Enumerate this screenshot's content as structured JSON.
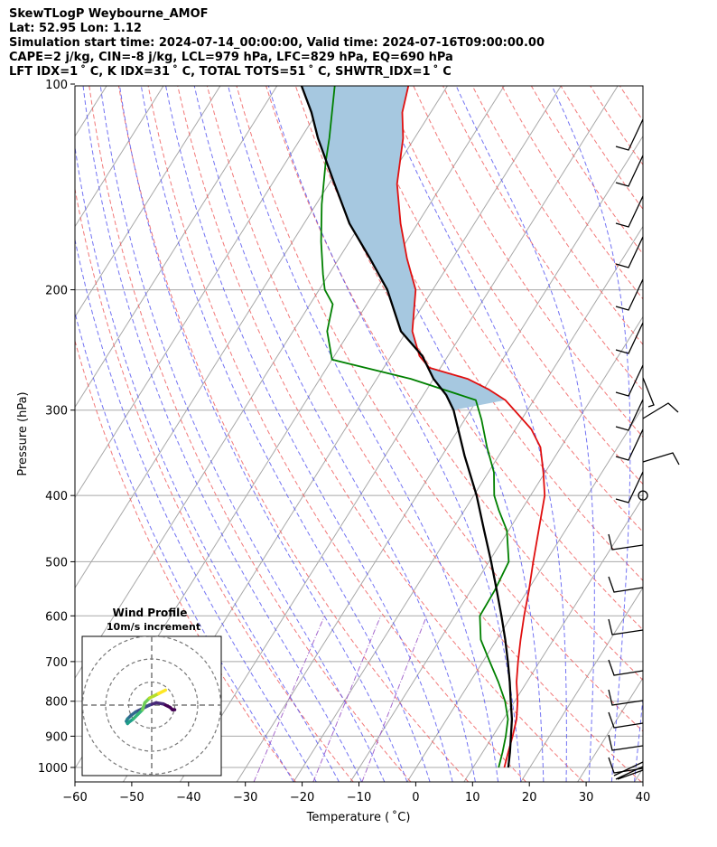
{
  "header": {
    "title": "SkewTLogP Weybourne_AMOF",
    "location": "Lat: 52.95   Lon: 1.12",
    "times": "Simulation start time: 2024-07-14_00:00:00, Valid time: 2024-07-16T09:00:00.00",
    "params1": "CAPE=2 j/kg, CIN=-8 j/kg, LCL=979 hPa, LFC=829 hPa, EQ=690 hPa",
    "params2": "LFT IDX=1 ˚ C, K IDX=31 ˚ C, TOTAL TOTS=51 ˚ C, SHWTR_IDX=1 ˚ C"
  },
  "chart_data": [
    {
      "type": "line",
      "subtype": "skew-t log-p",
      "xlabel": "Temperature ( ˚C)",
      "ylabel": "Pressure (hPa)",
      "xlim": [
        -60,
        40
      ],
      "ylim": [
        1050,
        100
      ],
      "y_scale": "log",
      "grid": true,
      "x_ticks": [
        "−60",
        "−50",
        "−40",
        "−30",
        "−20",
        "−10",
        "0",
        "10",
        "20",
        "30",
        "40"
      ],
      "x_tick_values": [
        -60,
        -50,
        -40,
        -30,
        -20,
        -10,
        0,
        10,
        20,
        30,
        40
      ],
      "y_ticks": [
        "1000",
        "900",
        "800",
        "700",
        "600",
        "500",
        "400",
        "300",
        "200",
        "100"
      ],
      "y_tick_values": [
        1000,
        900,
        800,
        700,
        600,
        500,
        400,
        300,
        200,
        100
      ],
      "colors": {
        "temperature": "#e01010",
        "dewpoint": "#008000",
        "parcel": "#000000",
        "cape_fill": "#a6c8e0",
        "dry_adiabat": "#f06060",
        "moist_adiabat": "#5050f0",
        "mixing_ratio": "#9c59c8",
        "isotherm": "#a8a8a8"
      },
      "series": [
        {
          "key": "temperature",
          "points": [
            [
              15.5,
              1000
            ],
            [
              14.5,
              950
            ],
            [
              13.5,
              900
            ],
            [
              12.3,
              850
            ],
            [
              10.5,
              800
            ],
            [
              8.2,
              750
            ],
            [
              6.2,
              700
            ],
            [
              4.2,
              650
            ],
            [
              2.2,
              600
            ],
            [
              0.2,
              550
            ],
            [
              -2.2,
              500
            ],
            [
              -4.7,
              450
            ],
            [
              -7.5,
              400
            ],
            [
              -10.3,
              370
            ],
            [
              -13.6,
              340
            ],
            [
              -17.2,
              320
            ],
            [
              -21,
              305
            ],
            [
              -25,
              290
            ],
            [
              -29,
              280
            ],
            [
              -34,
              270
            ],
            [
              -42,
              260
            ],
            [
              -45,
              250
            ],
            [
              -49,
              230
            ],
            [
              -53,
              200
            ],
            [
              -58,
              180
            ],
            [
              -63,
              160
            ],
            [
              -68,
              140
            ],
            [
              -72,
              120
            ],
            [
              -75,
              110
            ],
            [
              -77,
              100
            ]
          ]
        },
        {
          "key": "dewpoint",
          "points": [
            [
              14.5,
              1000
            ],
            [
              13.5,
              950
            ],
            [
              12.3,
              900
            ],
            [
              10.8,
              850
            ],
            [
              8.3,
              800
            ],
            [
              5,
              750
            ],
            [
              1.2,
              700
            ],
            [
              -2.8,
              650
            ],
            [
              -5.6,
              600
            ],
            [
              -5.8,
              550
            ],
            [
              -6.5,
              500
            ],
            [
              -10.3,
              450
            ],
            [
              -14,
              420
            ],
            [
              -16.4,
              400
            ],
            [
              -19,
              370
            ],
            [
              -23,
              340
            ],
            [
              -27,
              310
            ],
            [
              -30.2,
              290
            ],
            [
              -44,
              270
            ],
            [
              -60,
              253
            ],
            [
              -64,
              230
            ],
            [
              -66,
              210
            ],
            [
              -69,
              200
            ],
            [
              -71,
              190
            ],
            [
              -75,
              170
            ],
            [
              -79,
              150
            ],
            [
              -83,
              130
            ],
            [
              -85,
              120
            ],
            [
              -90,
              100
            ]
          ]
        },
        {
          "key": "parcel",
          "points": [
            [
              16.2,
              1000
            ],
            [
              14.8,
              950
            ],
            [
              13.2,
              900
            ],
            [
              11.5,
              850
            ],
            [
              9.3,
              800
            ],
            [
              7,
              750
            ],
            [
              4.4,
              700
            ],
            [
              1.5,
              650
            ],
            [
              -1.8,
              600
            ],
            [
              -5.5,
              550
            ],
            [
              -9.6,
              500
            ],
            [
              -14.3,
              450
            ],
            [
              -19.5,
              400
            ],
            [
              -26,
              350
            ],
            [
              -33,
              300
            ],
            [
              -36,
              285
            ],
            [
              -40,
              270
            ],
            [
              -44.5,
              250
            ],
            [
              -51,
              230
            ],
            [
              -58,
              200
            ],
            [
              -64.5,
              180
            ],
            [
              -72,
              160
            ],
            [
              -79,
              140
            ],
            [
              -87,
              120
            ],
            [
              -91,
              110
            ],
            [
              -96,
              100
            ]
          ]
        }
      ],
      "annotations": {
        "barbs_x_label": "",
        "calm_marker_pressure": 400
      }
    },
    {
      "type": "scatter",
      "subtype": "hodograph",
      "title": "Wind Profile",
      "subtitle": "10m/s increment",
      "rings_ms": [
        10,
        20,
        30
      ],
      "path_uv": [
        [
          10,
          -2
        ],
        [
          9,
          -2
        ],
        [
          8,
          -1
        ],
        [
          5,
          0.5
        ],
        [
          2,
          1
        ],
        [
          -1,
          0
        ],
        [
          -4,
          -1.5
        ],
        [
          -7,
          -3
        ],
        [
          -9,
          -4.5
        ],
        [
          -10.5,
          -6
        ],
        [
          -11,
          -7
        ],
        [
          -10.5,
          -8
        ],
        [
          -10,
          -7.5
        ],
        [
          -8,
          -6
        ],
        [
          -6,
          -4
        ],
        [
          -4,
          -2
        ],
        [
          -3,
          1
        ],
        [
          -1,
          3
        ],
        [
          1,
          4
        ],
        [
          3,
          5
        ],
        [
          5,
          6
        ],
        [
          6,
          6.5
        ]
      ]
    }
  ]
}
